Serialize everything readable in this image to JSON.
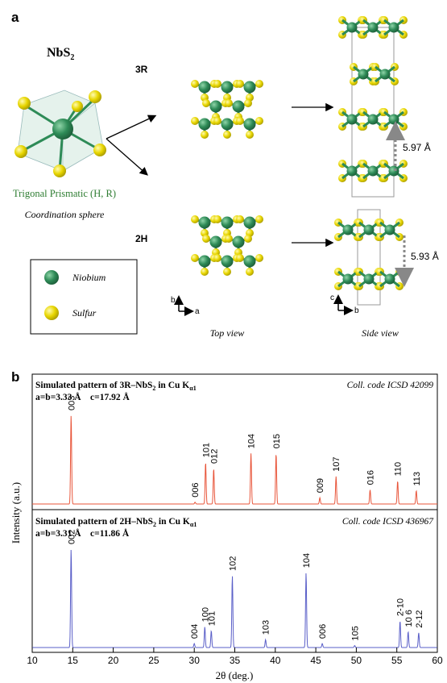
{
  "colors": {
    "niobium": "#2e8b57",
    "sulfur": "#e8d600",
    "coordination_green": "#2e7d32",
    "pattern_3r": "#e8553a",
    "pattern_2h": "#5a5fc8",
    "arrow_dashed": "#888888"
  },
  "panel_a": {
    "label": "a",
    "compound": "NbS",
    "compound_sub": "2",
    "geometry": "Trigonal Prismatic (H, R)",
    "sphere": "Coordination sphere",
    "polytype_3r": "3R",
    "polytype_2h": "2H",
    "spacing_3r": "5.97 Å",
    "spacing_2h": "5.93 Å",
    "top_view": "Top view",
    "side_view": "Side view",
    "legend": {
      "niobium": "Niobium",
      "sulfur": "Sulfur"
    },
    "axes_top": {
      "a": "a",
      "b": "b"
    },
    "axes_side": {
      "c": "c",
      "b": "b"
    }
  },
  "panel_b": {
    "label": "b",
    "ylabel": "Intensity (a.u.)",
    "xlabel": "2θ (deg.)"
  },
  "chart_data": [
    {
      "type": "line",
      "title": "Simulated pattern of 3R–NbS2 in Cu Kα1",
      "title_main": "Simulated pattern of 3R–NbS",
      "title_sub": "2",
      "title_tail": " in Cu K",
      "title_tail_sub": "α1",
      "subtitle": "a=b=3.33 Å    c=17.92 Å",
      "code": "Coll. code ICSD 42099",
      "xlim": [
        10,
        60
      ],
      "peaks": [
        {
          "x": 14.8,
          "y": 1.0,
          "label": "003"
        },
        {
          "x": 30.1,
          "y": 0.02,
          "label": "006"
        },
        {
          "x": 31.4,
          "y": 0.47,
          "label": "101"
        },
        {
          "x": 32.4,
          "y": 0.4,
          "label": "012"
        },
        {
          "x": 37.0,
          "y": 0.57,
          "label": "104"
        },
        {
          "x": 40.1,
          "y": 0.57,
          "label": "015"
        },
        {
          "x": 45.5,
          "y": 0.07,
          "label": "009"
        },
        {
          "x": 47.5,
          "y": 0.31,
          "label": "107"
        },
        {
          "x": 51.7,
          "y": 0.16,
          "label": "016"
        },
        {
          "x": 55.1,
          "y": 0.26,
          "label": "110"
        },
        {
          "x": 57.4,
          "y": 0.15,
          "label": "113"
        }
      ]
    },
    {
      "type": "line",
      "title": "Simulated pattern of 2H–NbS2 in Cu Kα1",
      "title_main": "Simulated pattern of 2H–NbS",
      "title_sub": "2",
      "title_tail": " in Cu K",
      "title_tail_sub": "α1",
      "subtitle": "a=b=3.31 Å    c=11.86 Å",
      "code": "Coll. code ICSD 436967",
      "xlim": [
        10,
        60
      ],
      "xticks": [
        10,
        15,
        20,
        25,
        30,
        35,
        40,
        45,
        50,
        55,
        60
      ],
      "peaks": [
        {
          "x": 14.8,
          "y": 1.0,
          "label": "002"
        },
        {
          "x": 30.0,
          "y": 0.04,
          "label": "004"
        },
        {
          "x": 31.3,
          "y": 0.21,
          "label": "100"
        },
        {
          "x": 32.1,
          "y": 0.17,
          "label": "101"
        },
        {
          "x": 34.7,
          "y": 0.73,
          "label": "102"
        },
        {
          "x": 38.8,
          "y": 0.08,
          "label": "103"
        },
        {
          "x": 43.8,
          "y": 0.76,
          "label": "104"
        },
        {
          "x": 45.8,
          "y": 0.04,
          "label": "006"
        },
        {
          "x": 49.8,
          "y": 0.02,
          "label": "105"
        },
        {
          "x": 55.4,
          "y": 0.27,
          "label": "2-10"
        },
        {
          "x": 56.4,
          "y": 0.16,
          "label": "10 6"
        },
        {
          "x": 57.7,
          "y": 0.15,
          "label": "2-12"
        }
      ]
    }
  ]
}
